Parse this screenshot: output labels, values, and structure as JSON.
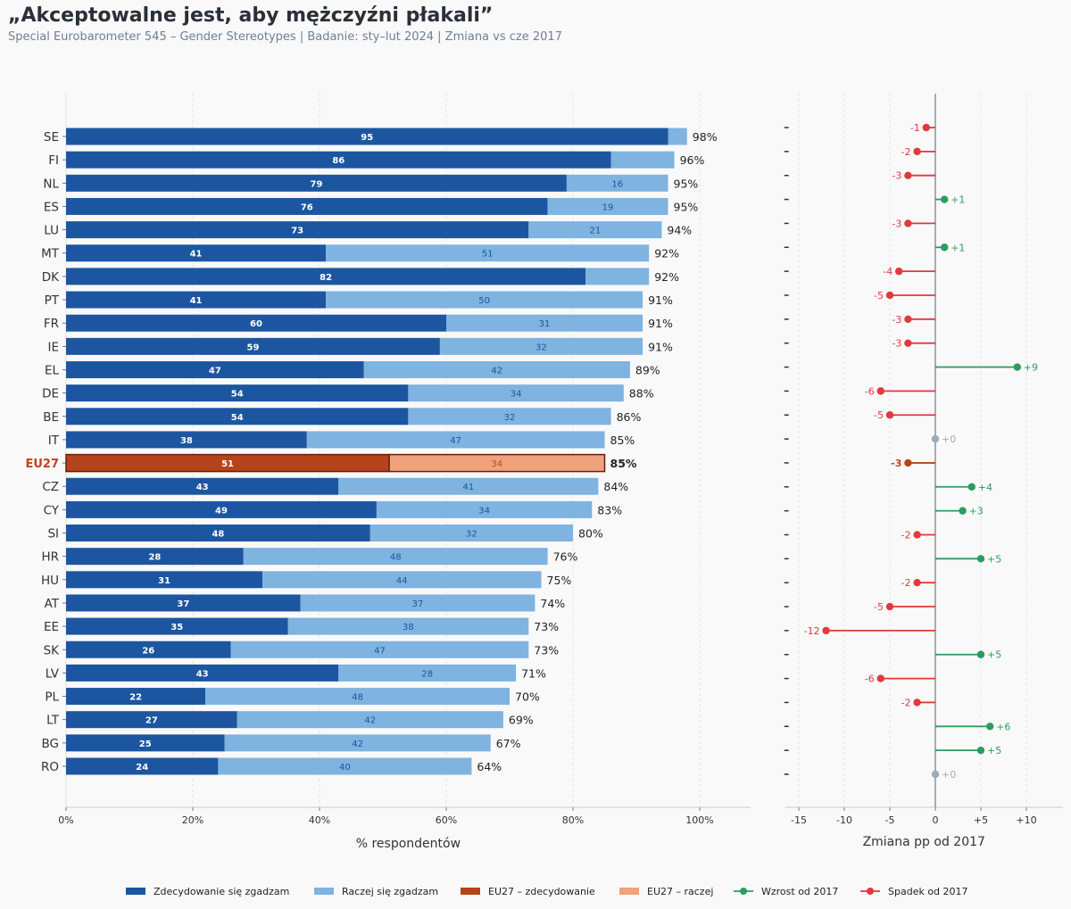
{
  "title": "„Akceptowalne jest, aby mężczyźni płakali”",
  "subtitle": "Special Eurobarometer 545 – Gender Stereotypes  |  Badanie: sty–lut 2024  |  Zmiana vs cze 2017",
  "colors": {
    "strong": "#1c56a0",
    "light": "#7fb3e0",
    "eu_strong": "#b5441c",
    "eu_light": "#f0a27c",
    "eu_label": "#c0441c",
    "increase": "#2e9b5f",
    "decrease": "#e0393e",
    "zero": "#a0aab8"
  },
  "chart_data": [
    {
      "type": "bar",
      "stacked": true,
      "orientation": "horizontal",
      "xlabel": "% respondentów",
      "xlim": [
        0,
        108
      ],
      "xticks": [
        "0%",
        "20%",
        "40%",
        "60%",
        "80%",
        "100%"
      ],
      "grid": true,
      "categories": [
        "SE",
        "FI",
        "NL",
        "ES",
        "LU",
        "MT",
        "DK",
        "PT",
        "FR",
        "IE",
        "EL",
        "DE",
        "BE",
        "IT",
        "EU27",
        "CZ",
        "CY",
        "SI",
        "HR",
        "HU",
        "AT",
        "EE",
        "SK",
        "LV",
        "PL",
        "LT",
        "BG",
        "RO"
      ],
      "series": [
        {
          "name": "Zdecydowanie się zgadzam",
          "values": [
            95,
            86,
            79,
            76,
            73,
            41,
            82,
            41,
            60,
            59,
            47,
            54,
            54,
            38,
            51,
            43,
            49,
            48,
            28,
            31,
            37,
            35,
            26,
            43,
            22,
            27,
            25,
            24
          ]
        },
        {
          "name": "Raczej się zgadzam",
          "values": [
            3,
            10,
            16,
            19,
            21,
            51,
            10,
            50,
            31,
            32,
            42,
            34,
            32,
            47,
            34,
            41,
            34,
            32,
            48,
            44,
            37,
            38,
            47,
            28,
            48,
            42,
            42,
            40
          ]
        }
      ],
      "totals": [
        "98%",
        "96%",
        "95%",
        "95%",
        "94%",
        "92%",
        "92%",
        "91%",
        "91%",
        "91%",
        "89%",
        "88%",
        "86%",
        "85%",
        "85%",
        "84%",
        "83%",
        "80%",
        "76%",
        "75%",
        "74%",
        "73%",
        "73%",
        "71%",
        "70%",
        "69%",
        "67%",
        "64%"
      ],
      "highlight": "EU27"
    },
    {
      "type": "lollipop",
      "xlabel": "Zmiana pp od 2017",
      "xlim": [
        -16.5,
        14
      ],
      "xticks": [
        "-15",
        "-10",
        "-5",
        "0",
        "+5",
        "+10"
      ],
      "grid": true,
      "categories": [
        "SE",
        "FI",
        "NL",
        "ES",
        "LU",
        "MT",
        "DK",
        "PT",
        "FR",
        "IE",
        "EL",
        "DE",
        "BE",
        "IT",
        "EU27",
        "CZ",
        "CY",
        "SI",
        "HR",
        "HU",
        "AT",
        "EE",
        "SK",
        "LV",
        "PL",
        "LT",
        "BG",
        "RO"
      ],
      "values": [
        -1,
        -2,
        -3,
        1,
        -3,
        1,
        -4,
        -5,
        -3,
        -3,
        9,
        -6,
        -5,
        0,
        -3,
        4,
        3,
        -2,
        5,
        -2,
        -5,
        -12,
        5,
        -6,
        -2,
        6,
        5,
        0
      ],
      "labels": [
        "-1",
        "-2",
        "-3",
        "+1",
        "-3",
        "+1",
        "-4",
        "-5",
        "-3",
        "-3",
        "+9",
        "-6",
        "-5",
        "+0",
        "-3",
        "+4",
        "+3",
        "-2",
        "+5",
        "-2",
        "-5",
        "-12",
        "+5",
        "-6",
        "-2",
        "+6",
        "+5",
        "+0"
      ]
    }
  ],
  "legend": [
    {
      "label": "Zdecydowanie się zgadzam",
      "kind": "rect",
      "color": "#1c56a0"
    },
    {
      "label": "Raczej się zgadzam",
      "kind": "rect",
      "color": "#7fb3e0"
    },
    {
      "label": "EU27 – zdecydowanie",
      "kind": "rect",
      "color": "#b5441c"
    },
    {
      "label": "EU27 – raczej",
      "kind": "rect",
      "color": "#f0a27c"
    },
    {
      "label": "Wzrost od 2017",
      "kind": "line",
      "color": "#2e9b5f"
    },
    {
      "label": "Spadek od 2017",
      "kind": "line",
      "color": "#e0393e"
    }
  ]
}
